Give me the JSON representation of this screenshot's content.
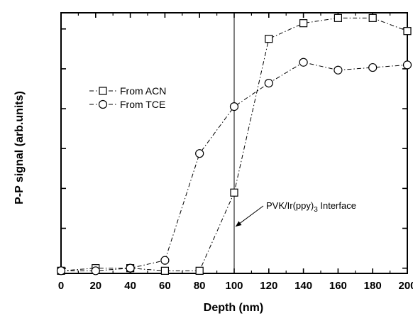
{
  "chart_data": {
    "type": "line",
    "title": "",
    "xlabel": "Depth (nm)",
    "ylabel": "P-P signal (arb.units)",
    "xlim": [
      0,
      200
    ],
    "ylim": [
      0,
      10
    ],
    "xticks": [
      0,
      20,
      40,
      60,
      80,
      100,
      120,
      140,
      160,
      180,
      200
    ],
    "grid": false,
    "legend_position": "upper-left",
    "series": [
      {
        "name": "From ACN",
        "marker": "square",
        "x": [
          0,
          20,
          40,
          60,
          80,
          100,
          120,
          140,
          160,
          180,
          200
        ],
        "y": [
          0.1,
          0.2,
          0.2,
          0.1,
          0.1,
          3.1,
          9.0,
          9.6,
          9.8,
          9.8,
          9.3
        ]
      },
      {
        "name": "From TCE",
        "marker": "circle",
        "x": [
          0,
          20,
          40,
          60,
          80,
          100,
          120,
          140,
          160,
          180,
          200
        ],
        "y": [
          0.1,
          0.1,
          0.2,
          0.5,
          4.6,
          6.4,
          7.3,
          8.1,
          7.8,
          7.9,
          8.0
        ]
      }
    ],
    "annotations": [
      {
        "type": "vline",
        "x": 100
      },
      {
        "text_main": "PVK/Ir(ppy)",
        "text_sub": "3",
        "text_tail": " Interface",
        "points_to": {
          "x": 100,
          "y": 1.8
        }
      }
    ]
  }
}
